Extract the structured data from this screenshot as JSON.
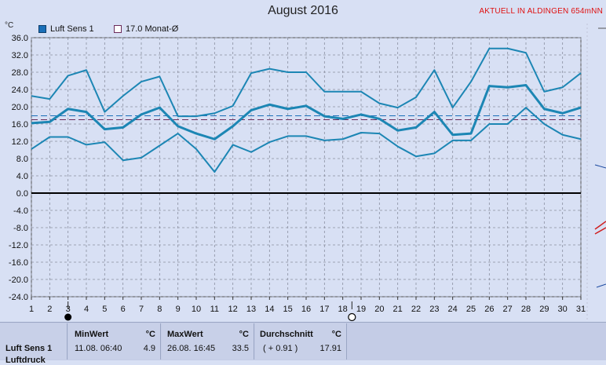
{
  "title": "August 2016",
  "status_text": "AKTUELL IN ALDINGEN 654mNN",
  "unit": "°C",
  "legend": [
    {
      "label": "Luft Sens 1",
      "color": "#1a6fb8",
      "filled": true
    },
    {
      "label": "17.0 Monat-Ø",
      "color": "#6a2a5a",
      "filled": false
    }
  ],
  "chart_data": {
    "type": "line",
    "x": [
      1,
      2,
      3,
      4,
      5,
      6,
      7,
      8,
      9,
      10,
      11,
      12,
      13,
      14,
      15,
      16,
      17,
      18,
      19,
      20,
      21,
      22,
      23,
      24,
      25,
      26,
      27,
      28,
      29,
      30,
      31
    ],
    "xlim": [
      1,
      31
    ],
    "ylim": [
      -24,
      36
    ],
    "yticks": [
      "36.0",
      "32.0",
      "28.0",
      "24.0",
      "20.0",
      "16.0",
      "12.0",
      "8.0",
      "4.0",
      "0.0",
      "-4.0",
      "-8.0",
      "-12.0",
      "-16.0",
      "-20.0",
      "-24.0"
    ],
    "ytick_values": [
      36,
      32,
      28,
      24,
      20,
      16,
      12,
      8,
      4,
      0,
      -4,
      -8,
      -12,
      -16,
      -20,
      -24
    ],
    "xticks": [
      "1",
      "2",
      "3",
      "4",
      "5",
      "6",
      "7",
      "8",
      "9",
      "10",
      "11",
      "12",
      "13",
      "14",
      "15",
      "16",
      "17",
      "18",
      "19",
      "20",
      "21",
      "22",
      "23",
      "24",
      "25",
      "26",
      "27",
      "28",
      "29",
      "30",
      "31"
    ],
    "grid": true,
    "series": [
      {
        "role": "max",
        "color": "#1c86b4",
        "width": 2,
        "values": [
          22.5,
          21.8,
          27.2,
          28.5,
          18.8,
          22.5,
          25.8,
          27.0,
          17.8,
          17.8,
          18.5,
          20.2,
          27.8,
          28.8,
          28.0,
          28.0,
          23.5,
          23.5,
          23.5,
          20.8,
          19.8,
          22.2,
          28.5,
          19.8,
          25.8,
          33.5,
          33.5,
          32.5,
          23.5,
          24.5,
          27.8
        ]
      },
      {
        "role": "mean",
        "color": "#1c86b4",
        "width": 3,
        "values": [
          16.2,
          16.5,
          19.5,
          18.8,
          14.8,
          15.2,
          18.2,
          19.8,
          15.5,
          13.8,
          12.5,
          15.5,
          19.2,
          20.5,
          19.5,
          20.2,
          17.8,
          17.2,
          18.2,
          17.2,
          14.5,
          15.2,
          18.8,
          13.5,
          13.8,
          24.8,
          24.5,
          25.0,
          19.5,
          18.5,
          19.8
        ]
      },
      {
        "role": "min",
        "color": "#1c86b4",
        "width": 2,
        "values": [
          10.2,
          13.0,
          13.0,
          11.2,
          11.8,
          7.6,
          8.2,
          11.0,
          13.8,
          10.2,
          4.9,
          11.2,
          9.5,
          11.8,
          13.2,
          13.2,
          12.2,
          12.5,
          14.0,
          13.8,
          10.8,
          8.5,
          9.2,
          12.2,
          12.2,
          16.0,
          16.0,
          19.8,
          16.0,
          13.5,
          12.5
        ]
      }
    ],
    "reference_lines": [
      {
        "value": 17.9,
        "color": "#1a6fb8",
        "style": "dashed"
      },
      {
        "value": 17.0,
        "color": "#6a2a5a",
        "style": "dashed"
      },
      {
        "value": 0,
        "color": "#000000",
        "style": "solid"
      }
    ],
    "markers": [
      {
        "x": 3,
        "symbol": "filled-circle"
      },
      {
        "x": 18.5,
        "symbol": "open-circle"
      }
    ]
  },
  "stats": {
    "sensor": "Luft Sens 1",
    "sensor_sub": "Luftdruck",
    "min": {
      "header": "MinWert",
      "unit": "°C",
      "time": "11.08.  06:40",
      "value": "4.9"
    },
    "max": {
      "header": "MaxWert",
      "unit": "°C",
      "time": "26.08.  16:45",
      "value": "33.5"
    },
    "avg": {
      "header": "Durchschnitt",
      "unit": "°C",
      "delta": "( + 0.91 )",
      "value": "17.91"
    }
  }
}
